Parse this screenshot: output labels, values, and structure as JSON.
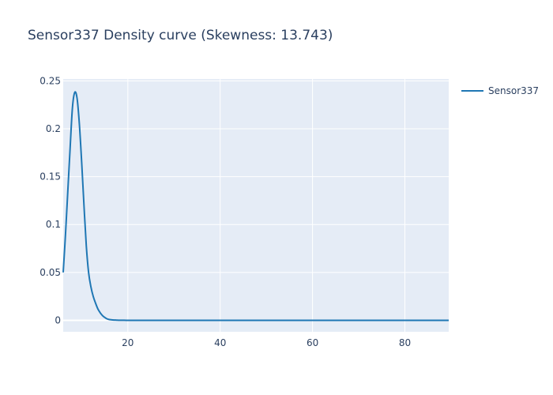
{
  "chart_data": {
    "type": "line",
    "title": "Sensor337 Density curve (Skewness: 13.743)",
    "xlabel": "",
    "ylabel": "",
    "xlim": [
      6.0,
      89.5
    ],
    "ylim": [
      -0.012,
      0.252
    ],
    "x_ticks": [
      20,
      40,
      60,
      80
    ],
    "x_tick_labels": [
      "20",
      "40",
      "60",
      "80"
    ],
    "y_ticks": [
      0,
      0.05,
      0.1,
      0.15,
      0.2,
      0.25
    ],
    "y_tick_labels": [
      "0",
      "0.05",
      "0.1",
      "0.15",
      "0.2",
      "0.25"
    ],
    "grid": true,
    "legend_position": "top-right",
    "colors": {
      "plot_bg": "#E5ECF6",
      "grid": "#ffffff",
      "line": "#1f77b4",
      "text": "#2a3f5f"
    },
    "series": [
      {
        "name": "Sensor337",
        "x": [
          6.0,
          6.5,
          7.0,
          7.5,
          8.0,
          8.5,
          9.0,
          9.5,
          10.0,
          10.5,
          11.0,
          11.5,
          12.0,
          12.5,
          13.0,
          13.5,
          14.0,
          14.5,
          15.0,
          15.5,
          16.0,
          16.5,
          17.0,
          17.5,
          18.0,
          19.0,
          20.0,
          25.0,
          30.0,
          40.0,
          50.0,
          60.0,
          70.0,
          80.0,
          89.5
        ],
        "y": [
          0.05,
          0.09,
          0.135,
          0.18,
          0.222,
          0.238,
          0.232,
          0.205,
          0.165,
          0.12,
          0.078,
          0.05,
          0.035,
          0.025,
          0.018,
          0.012,
          0.008,
          0.005,
          0.003,
          0.0015,
          0.0008,
          0.0005,
          0.0003,
          0.0002,
          0.0001,
          0.0001,
          0.0,
          0.0,
          0.0,
          0.0,
          0.0,
          0.0,
          0.0,
          0.0,
          0.0
        ]
      }
    ]
  }
}
